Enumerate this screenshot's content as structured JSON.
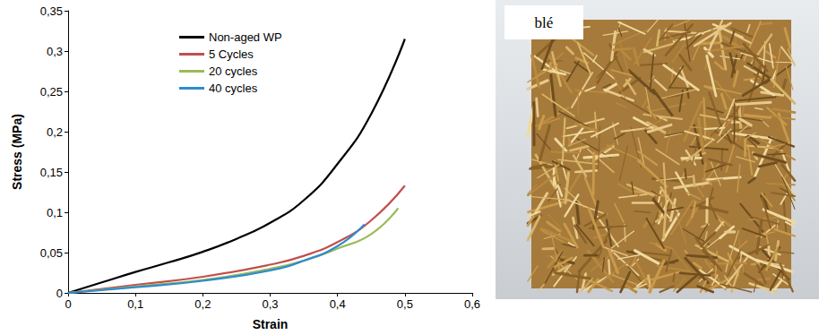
{
  "chart_data": {
    "type": "line",
    "x_label": "Strain",
    "y_label": "Stress (MPa)",
    "xlim": [
      0,
      0.6
    ],
    "xticks": [
      0,
      {
        "value": 0.1,
        "label": "0,1"
      },
      {
        "value": 0.2,
        "label": "0,2"
      },
      {
        "value": 0.3,
        "label": "0,3"
      },
      {
        "value": 0.4,
        "label": "0,4"
      },
      {
        "value": 0.5,
        "label": "0,5"
      },
      {
        "value": 0.6,
        "label": "0,6"
      }
    ],
    "ylim": [
      0,
      0.35
    ],
    "yticks": [
      0,
      {
        "value": 0.05,
        "label": "0,05"
      },
      {
        "value": 0.1,
        "label": "0,1"
      },
      {
        "value": 0.15,
        "label": "0,15"
      },
      {
        "value": 0.2,
        "label": "0,2"
      },
      {
        "value": 0.25,
        "label": "0,25"
      },
      {
        "value": 0.3,
        "label": "0,3"
      },
      {
        "value": 0.35,
        "label": "0,35"
      }
    ],
    "grid": false,
    "legend": "upper left",
    "series": [
      {
        "name": "Non-aged WP",
        "color": "#000000",
        "line_style": "solid",
        "x": [
          0,
          0.05,
          0.1,
          0.15,
          0.2,
          0.25,
          0.3,
          0.35,
          0.4,
          0.45,
          0.5
        ],
        "values": [
          0,
          0.013,
          0.026,
          0.038,
          0.051,
          0.067,
          0.087,
          0.115,
          0.16,
          0.222,
          0.315
        ]
      },
      {
        "name": "5 Cycles",
        "color": "#c0504d",
        "line_style": "solid",
        "x": [
          0,
          0.1,
          0.2,
          0.3,
          0.35,
          0.4,
          0.45,
          0.5
        ],
        "values": [
          0,
          0.01,
          0.02,
          0.035,
          0.046,
          0.063,
          0.09,
          0.133
        ]
      },
      {
        "name": "20 cycles",
        "color": "#9bbb59",
        "line_style": "solid",
        "x": [
          0,
          0.1,
          0.2,
          0.3,
          0.35,
          0.4,
          0.45,
          0.49
        ],
        "values": [
          0,
          0.008,
          0.016,
          0.03,
          0.04,
          0.055,
          0.073,
          0.105
        ]
      },
      {
        "name": "40 cycles",
        "color": "#2e8bcf",
        "line_style": "solid",
        "x": [
          0,
          0.1,
          0.2,
          0.3,
          0.35,
          0.4,
          0.44
        ],
        "values": [
          0,
          0.007,
          0.015,
          0.028,
          0.04,
          0.058,
          0.085
        ]
      }
    ]
  },
  "photo": {
    "label": "blé"
  }
}
